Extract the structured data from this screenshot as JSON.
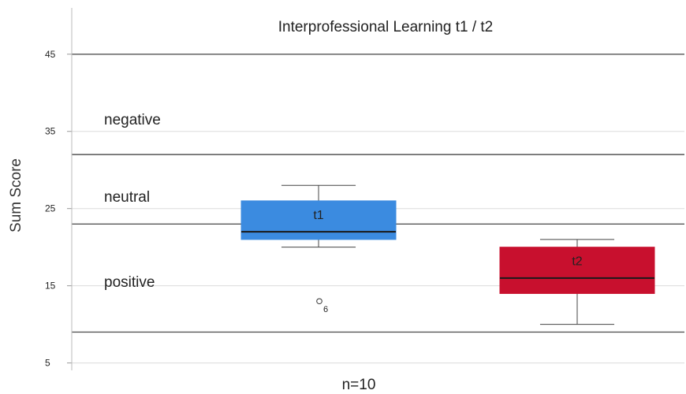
{
  "chart_data": {
    "type": "box",
    "title": "Interprofessional Learning t1 / t2",
    "xlabel": "n=10",
    "ylabel": "Sum Score",
    "ylim": [
      2,
      51
    ],
    "yticks": [
      5,
      15,
      25,
      35,
      45
    ],
    "grid": true,
    "thresholds": [
      {
        "value": 45
      },
      {
        "value": 32
      },
      {
        "value": 23
      },
      {
        "value": 9
      }
    ],
    "regions": [
      {
        "label": "negative",
        "value": 36.5
      },
      {
        "label": "neutral",
        "value": 26.5
      },
      {
        "label": "positive",
        "value": 15.5
      }
    ],
    "boxes": [
      {
        "label": "t1",
        "color": "#3b8be0",
        "whisker_low": 20,
        "q1": 21,
        "median": 22,
        "q3": 26,
        "whisker_high": 28,
        "outliers": [
          {
            "value": 13,
            "label": "6"
          }
        ]
      },
      {
        "label": "t2",
        "color": "#c8102e",
        "whisker_low": 10,
        "q1": 14,
        "median": 16,
        "q3": 20,
        "whisker_high": 21,
        "outliers": []
      }
    ]
  }
}
